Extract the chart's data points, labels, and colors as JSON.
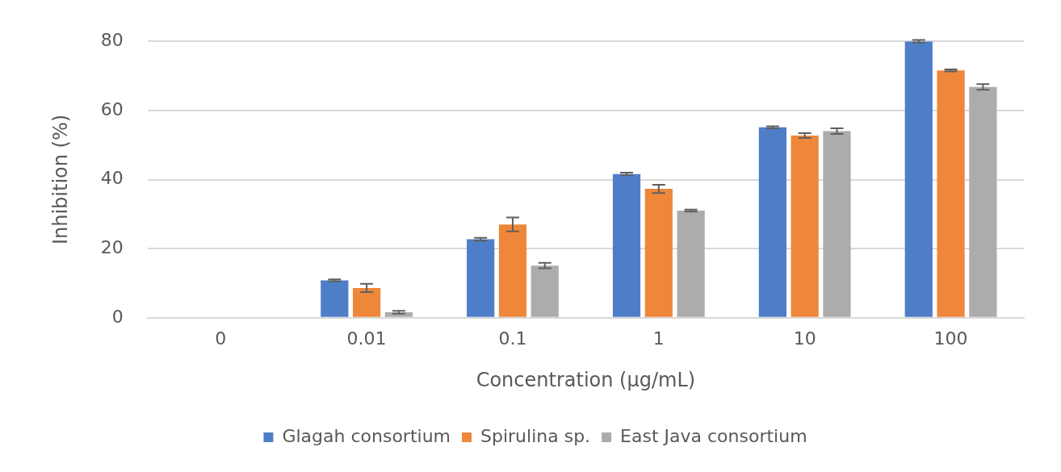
{
  "chart_data": {
    "type": "bar",
    "xlabel": "Concentration (µg/mL)",
    "ylabel": "Inhibition (%)",
    "categories": [
      "0",
      "0.01",
      "0.1",
      "1",
      "10",
      "100"
    ],
    "series": [
      {
        "name": "Glagah consortium",
        "color": "#4f7ec8",
        "values": [
          0,
          10.8,
          22.7,
          41.6,
          55.1,
          80
        ],
        "errors": [
          null,
          0.3,
          0.4,
          0.4,
          0.3,
          0.4
        ]
      },
      {
        "name": "Spirulina sp.",
        "color": "#ef873b",
        "values": [
          0,
          8.6,
          27,
          37.3,
          52.7,
          71.6
        ],
        "errors": [
          null,
          1.2,
          2,
          1.2,
          0.7,
          0.3
        ]
      },
      {
        "name": "East Java consortium",
        "color": "#acacac",
        "values": [
          0,
          1.6,
          15.1,
          31,
          54,
          66.8
        ],
        "errors": [
          null,
          0.4,
          0.8,
          0.3,
          0.8,
          0.8
        ]
      }
    ],
    "ylim": [
      0,
      80
    ],
    "yticks": [
      0,
      20,
      40,
      60,
      80
    ],
    "grid": "y",
    "legend": "bottom"
  }
}
